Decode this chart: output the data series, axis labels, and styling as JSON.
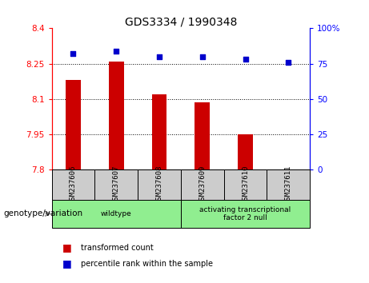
{
  "title": "GDS3334 / 1990348",
  "samples": [
    "GSM237606",
    "GSM237607",
    "GSM237608",
    "GSM237609",
    "GSM237610",
    "GSM237611"
  ],
  "red_values": [
    8.18,
    8.26,
    8.12,
    8.085,
    7.95,
    7.802
  ],
  "blue_values": [
    82,
    84,
    80,
    80,
    78,
    76
  ],
  "ylim_left": [
    7.8,
    8.4
  ],
  "ylim_right": [
    0,
    100
  ],
  "yticks_left": [
    7.8,
    7.95,
    8.1,
    8.25,
    8.4
  ],
  "yticks_right": [
    0,
    25,
    50,
    75,
    100
  ],
  "ytick_labels_left": [
    "7.8",
    "7.95",
    "8.1",
    "8.25",
    "8.4"
  ],
  "ytick_labels_right": [
    "0",
    "25",
    "50",
    "75",
    "100%"
  ],
  "grid_lines": [
    8.25,
    8.1,
    7.95
  ],
  "groups": [
    {
      "label": "wildtype",
      "start": 0,
      "end": 3
    },
    {
      "label": "activating transcriptional\nfactor 2 null",
      "start": 3,
      "end": 6
    }
  ],
  "bar_color": "#CC0000",
  "dot_color": "#0000CC",
  "legend_red": "transformed count",
  "legend_blue": "percentile rank within the sample",
  "xlabel_label": "genotype/variation",
  "bar_width": 0.35,
  "tick_label_bg": "#cccccc",
  "group_color": "#90EE90"
}
